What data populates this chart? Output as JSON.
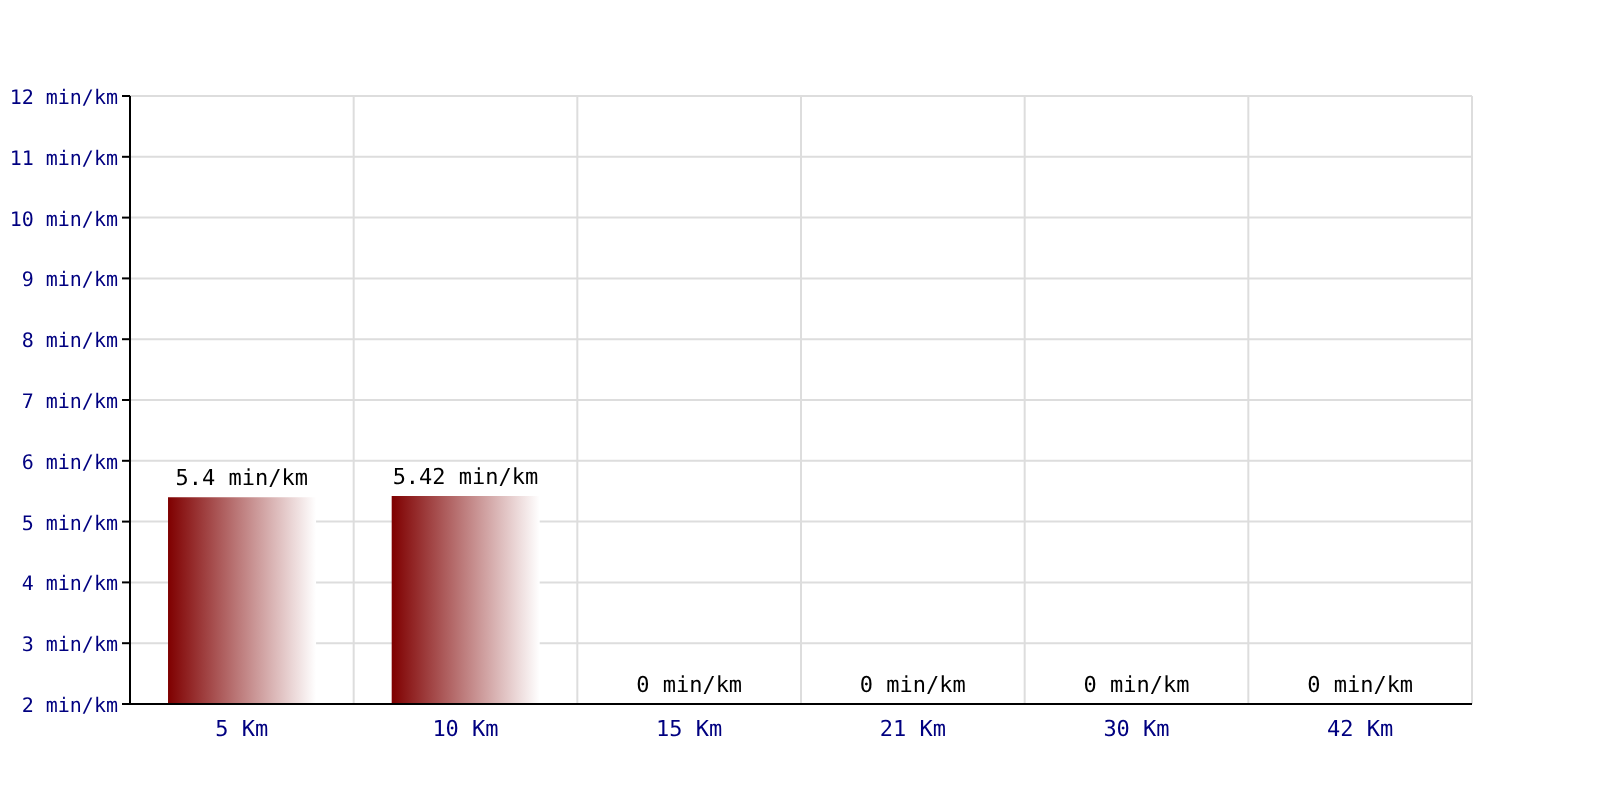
{
  "chart_data": {
    "type": "bar",
    "categories": [
      "5 Km",
      "10 Km",
      "15 Km",
      "21 Km",
      "30 Km",
      "42 Km"
    ],
    "values": [
      5.4,
      5.42,
      null,
      null,
      null,
      null
    ],
    "value_labels": [
      "5.4 min/km",
      "5.42 min/km",
      "0 min/km",
      "0 min/km",
      "0 min/km",
      "0 min/km"
    ],
    "color": "#7f0000",
    "ylim": [
      2,
      12
    ],
    "yticks": [
      {
        "value": 2,
        "label": "2 min/km"
      },
      {
        "value": 3,
        "label": "3 min/km"
      },
      {
        "value": 4,
        "label": "4 min/km"
      },
      {
        "value": 5,
        "label": "5 min/km"
      },
      {
        "value": 6,
        "label": "6 min/km"
      },
      {
        "value": 7,
        "label": "7 min/km"
      },
      {
        "value": 8,
        "label": "8 min/km"
      },
      {
        "value": 9,
        "label": "9 min/km"
      },
      {
        "value": 10,
        "label": "10 min/km"
      },
      {
        "value": 11,
        "label": "11 min/km"
      },
      {
        "value": 12,
        "label": "12 min/km"
      }
    ],
    "grid": true
  }
}
